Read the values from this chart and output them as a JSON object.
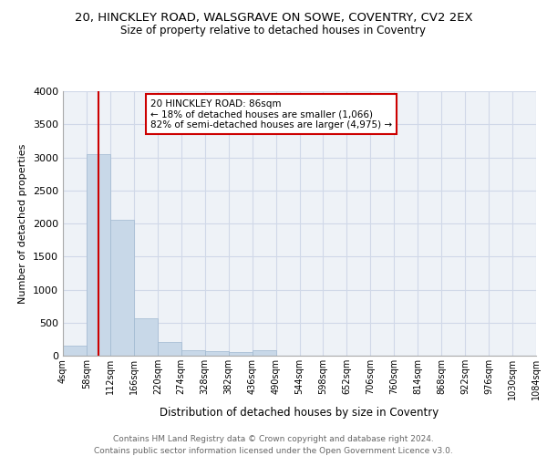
{
  "title_line1": "20, HINCKLEY ROAD, WALSGRAVE ON SOWE, COVENTRY, CV2 2EX",
  "title_line2": "Size of property relative to detached houses in Coventry",
  "xlabel": "Distribution of detached houses by size in Coventry",
  "ylabel": "Number of detached properties",
  "footer_line1": "Contains HM Land Registry data © Crown copyright and database right 2024.",
  "footer_line2": "Contains public sector information licensed under the Open Government Licence v3.0.",
  "bin_labels": [
    "4sqm",
    "58sqm",
    "112sqm",
    "166sqm",
    "220sqm",
    "274sqm",
    "328sqm",
    "382sqm",
    "436sqm",
    "490sqm",
    "544sqm",
    "598sqm",
    "652sqm",
    "706sqm",
    "760sqm",
    "814sqm",
    "868sqm",
    "922sqm",
    "976sqm",
    "1030sqm",
    "1084sqm"
  ],
  "bar_heights": [
    150,
    3050,
    2060,
    560,
    210,
    80,
    65,
    55,
    80,
    0,
    0,
    0,
    0,
    0,
    0,
    0,
    0,
    0,
    0,
    0
  ],
  "bar_color": "#c8d8e8",
  "bar_edge_color": "#a0b8d0",
  "ylim": [
    0,
    4000
  ],
  "yticks": [
    0,
    500,
    1000,
    1500,
    2000,
    2500,
    3000,
    3500,
    4000
  ],
  "property_size": 86,
  "red_line_color": "#cc0000",
  "annotation_line1": "20 HINCKLEY ROAD: 86sqm",
  "annotation_line2": "← 18% of detached houses are smaller (1,066)",
  "annotation_line3": "82% of semi-detached houses are larger (4,975) →",
  "annotation_box_color": "#cc0000",
  "grid_color": "#d0d8e8",
  "background_color": "#eef2f7",
  "bin_width": 54
}
